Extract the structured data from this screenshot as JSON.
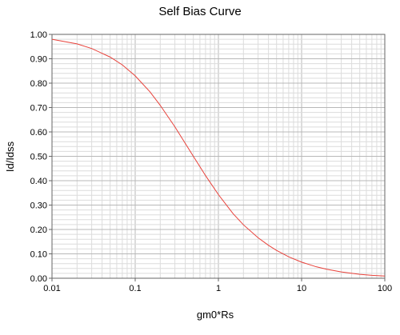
{
  "chart_data": {
    "type": "line",
    "title": "Self Bias Curve",
    "xlabel": "gm0*Rs",
    "ylabel": "Id/Idss",
    "x_scale": "log",
    "xlim": [
      0.01,
      100
    ],
    "ylim": [
      0,
      1
    ],
    "x_ticks": [
      "0.01",
      "0.1",
      "1",
      "10",
      "100"
    ],
    "y_ticks": [
      "0.00",
      "0.10",
      "0.20",
      "0.30",
      "0.40",
      "0.50",
      "0.60",
      "0.70",
      "0.80",
      "0.90",
      "1.00"
    ],
    "grid": true,
    "line_color": "#e8413a",
    "series": [
      {
        "x": [
          0.01,
          0.02,
          0.03,
          0.05,
          0.07,
          0.1,
          0.15,
          0.2,
          0.3,
          0.4,
          0.5,
          0.7,
          1,
          1.5,
          2,
          3,
          4,
          5,
          7,
          10,
          15,
          20,
          30,
          50,
          70,
          100
        ],
        "values": [
          0.98,
          0.961,
          0.942,
          0.907,
          0.875,
          0.83,
          0.765,
          0.709,
          0.621,
          0.553,
          0.5,
          0.421,
          0.343,
          0.265,
          0.219,
          0.166,
          0.135,
          0.114,
          0.088,
          0.066,
          0.047,
          0.037,
          0.026,
          0.016,
          0.012,
          0.009
        ]
      }
    ]
  }
}
